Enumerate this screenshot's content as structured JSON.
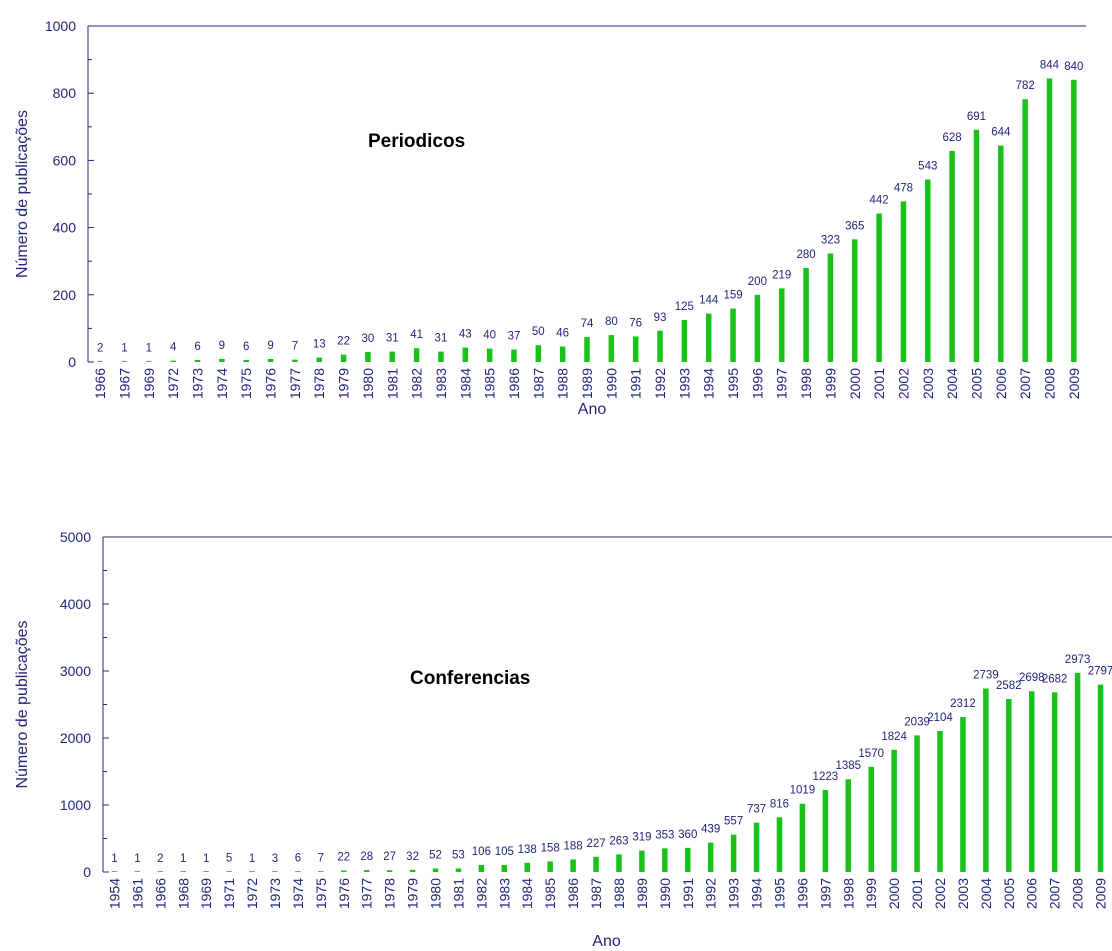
{
  "chart_data": [
    {
      "type": "bar",
      "title": "Periodicos",
      "xlabel": "Ano",
      "ylabel": "Número de publicações",
      "ylim": [
        0,
        1000
      ],
      "yticks": [
        0,
        200,
        400,
        600,
        800,
        1000
      ],
      "grid": false,
      "color": "#19c219",
      "categories": [
        "1966",
        "1967",
        "1969",
        "1972",
        "1973",
        "1974",
        "1975",
        "1976",
        "1977",
        "1978",
        "1979",
        "1980",
        "1981",
        "1982",
        "1983",
        "1984",
        "1985",
        "1986",
        "1987",
        "1988",
        "1989",
        "1990",
        "1991",
        "1992",
        "1993",
        "1994",
        "1995",
        "1996",
        "1997",
        "1998",
        "1999",
        "2000",
        "2001",
        "2002",
        "2003",
        "2004",
        "2005",
        "2006",
        "2007",
        "2008",
        "2009"
      ],
      "values": [
        2,
        1,
        1,
        4,
        6,
        9,
        6,
        9,
        7,
        13,
        22,
        30,
        31,
        41,
        31,
        43,
        40,
        37,
        50,
        46,
        74,
        80,
        76,
        93,
        125,
        144,
        159,
        200,
        219,
        280,
        323,
        365,
        442,
        478,
        543,
        628,
        691,
        644,
        782,
        844,
        840
      ]
    },
    {
      "type": "bar",
      "title": "Conferencias",
      "xlabel": "Ano",
      "ylabel": "Número de publicações",
      "ylim": [
        0,
        5000
      ],
      "yticks": [
        0,
        1000,
        2000,
        3000,
        4000,
        5000
      ],
      "grid": false,
      "color": "#19c219",
      "categories": [
        "1954",
        "1961",
        "1966",
        "1968",
        "1969",
        "1971",
        "1972",
        "1973",
        "1974",
        "1975",
        "1976",
        "1977",
        "1978",
        "1979",
        "1980",
        "1981",
        "1982",
        "1983",
        "1984",
        "1985",
        "1986",
        "1987",
        "1988",
        "1989",
        "1990",
        "1991",
        "1992",
        "1993",
        "1994",
        "1995",
        "1996",
        "1997",
        "1998",
        "1999",
        "2000",
        "2001",
        "2002",
        "2003",
        "2004",
        "2005",
        "2006",
        "2007",
        "2008",
        "2009"
      ],
      "values": [
        1,
        1,
        2,
        1,
        1,
        5,
        1,
        3,
        6,
        7,
        22,
        28,
        27,
        32,
        52,
        53,
        106,
        105,
        138,
        158,
        188,
        227,
        263,
        319,
        353,
        360,
        439,
        557,
        737,
        816,
        1019,
        1223,
        1385,
        1570,
        1824,
        2039,
        2104,
        2312,
        2739,
        2582,
        2698,
        2682,
        2973,
        2797
      ]
    }
  ]
}
